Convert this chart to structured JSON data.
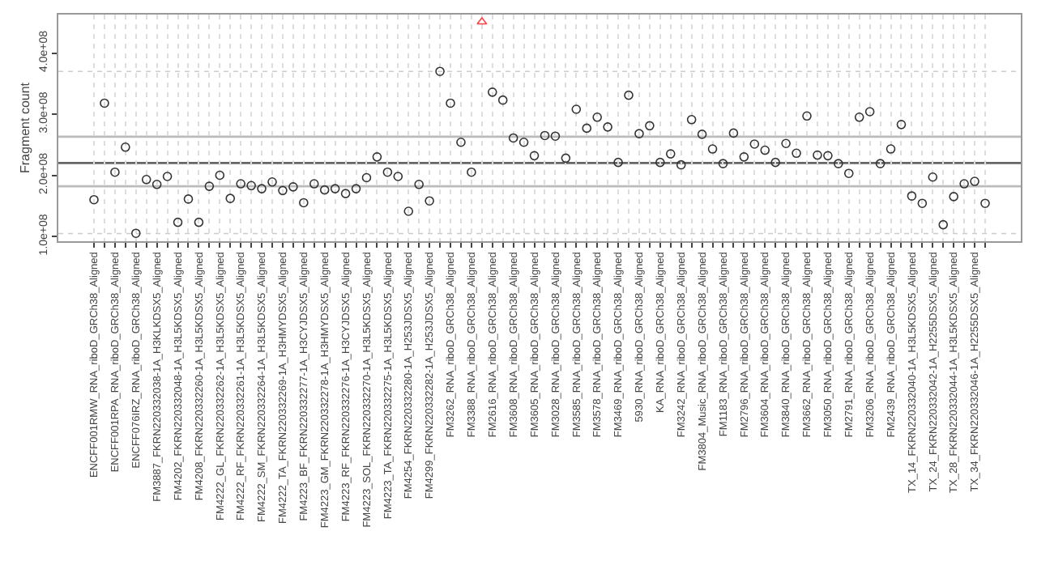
{
  "chart_data": {
    "type": "scatter",
    "ylabel": "Fragment count",
    "categories": [
      "ENCFF001RMW_RNA_riboD_GRCh38_Aligned",
      null,
      "ENCFF001RPA_RNA_riboD_GRCh38_Aligned",
      null,
      "ENCFF076IRZ_RNA_riboD_GRCh38_Aligned",
      null,
      "FM3887_FKRN220332038-1A_H3KLKDSX5_Aligned",
      null,
      "FM4202_FKRN220332048-1A_H3L5KDSX5_Aligned",
      null,
      "FM4208_FKRN220332260-1A_H3L5KDSX5_Aligned",
      null,
      "FM4222_GL_FKRN220332262-1A_H3L5KDSX5_Aligned",
      null,
      "FM4222_RF_FKRN220332261-1A_H3L5KDSX5_Aligned",
      null,
      "FM4222_SM_FKRN220332264-1A_H3L5KDSX5_Aligned",
      null,
      "FM4222_TA_FKRN220332269-1A_H3HMYDSX5_Aligned",
      null,
      "FM4223_BF_FKRN220332277-1A_H3CYJDSX5_Aligned",
      null,
      "FM4223_GM_FKRN220332278-1A_H3HMYDSX5_Aligned",
      null,
      "FM4223_RF_FKRN220332276-1A_H3CYJDSX5_Aligned",
      null,
      "FM4223_SOL_FKRN220332270-1A_H3L5KDSX5_Aligned",
      null,
      "FM4223_TA_FKRN220332275-1A_H3L5KDSX5_Aligned",
      null,
      "FM4254_FKRN220332280-1A_H253JDSX5_Aligned",
      null,
      "FM4299_FKRN220332282-1A_H253JDSX5_Aligned",
      null,
      "FM3262_RNA_riboD_GRCh38_Aligned",
      null,
      "FM3388_RNA_riboD_GRCh38_Aligned",
      null,
      "FM2616_RNA_riboD_GRCh38_Aligned",
      null,
      "FM3608_RNA_riboD_GRCh38_Aligned",
      null,
      "FM3605_RNA_riboD_GRCh38_Aligned",
      null,
      "FM3028_RNA_riboD_GRCh38_Aligned",
      null,
      "FM3585_RNA_riboD_GRCh38_Aligned",
      null,
      "FM3578_RNA_riboD_GRCh38_Aligned",
      null,
      "FM3469_RNA_riboD_GRCh38_Aligned",
      null,
      "5930_RNA_riboD_GRCh38_Aligned",
      null,
      "KA_RNA_riboD_GRCh38_Aligned",
      null,
      "FM3242_RNA_riboD_GRCh38_Aligned",
      null,
      "FM3804_Music_RNA_riboD_GRCh38_Aligned",
      null,
      "FM1183_RNA_riboD_GRCh38_Aligned",
      null,
      "FM2796_RNA_riboD_GRCh38_Aligned",
      null,
      "FM3604_RNA_riboD_GRCh38_Aligned",
      null,
      "FM3840_RNA_riboD_GRCh38_Aligned",
      null,
      "FM3662_RNA_riboD_GRCh38_Aligned",
      null,
      "FM3050_RNA_riboD_GRCh38_Aligned",
      null,
      "FM2791_RNA_riboD_GRCh38_Aligned",
      null,
      "FM3206_RNA_riboD_GRCh38_Aligned",
      null,
      "FM2439_RNA_riboD_GRCh38_Aligned",
      null,
      "TX_14_FKRN220332040-1A_H3L5KDSX5_Aligned",
      null,
      "TX_24_FKRN220332042-1A_H2255DSX5_Aligned",
      null,
      "TX_28_FKRN220332044-1A_H3L5KDSX5_Aligned",
      null,
      "TX_34_FKRN220332046-1A_H2255DSX5_Aligned",
      null
    ],
    "series": [
      {
        "color": "#333333",
        "marker": "circle",
        "values": [
          160000000.0,
          318000000.0,
          205000000.0,
          246000000.0,
          105000000.0,
          193000000.0,
          185000000.0,
          198000000.0,
          123000000.0,
          161000000.0,
          123000000.0,
          182000000.0,
          200000000.0,
          162000000.0,
          186000000.0,
          183000000.0,
          178000000.0,
          189000000.0,
          175000000.0,
          181000000.0,
          155000000.0,
          186000000.0,
          176000000.0,
          178000000.0,
          170000000.0,
          178000000.0,
          196000000.0,
          230000000.0,
          205000000.0,
          198000000.0,
          141000000.0,
          185000000.0,
          158000000.0,
          370000000.0,
          318000000.0,
          254000000.0,
          205000000.0,
          null,
          336000000.0,
          323000000.0,
          261000000.0,
          254000000.0,
          232000000.0,
          265000000.0,
          264000000.0,
          228000000.0,
          308000000.0,
          277000000.0,
          295000000.0,
          279000000.0,
          221000000.0,
          331000000.0,
          268000000.0,
          281000000.0,
          221000000.0,
          235000000.0,
          217000000.0,
          291000000.0,
          267000000.0,
          243000000.0,
          219000000.0,
          269000000.0,
          230000000.0,
          251000000.0,
          241000000.0,
          221000000.0,
          252000000.0,
          236000000.0,
          297000000.0,
          233000000.0,
          232000000.0,
          219000000.0,
          203000000.0,
          295000000.0,
          304000000.0,
          219000000.0,
          243000000.0,
          283000000.0,
          166000000.0,
          154000000.0,
          197000000.0,
          119000000.0,
          165000000.0,
          186000000.0,
          190000000.0,
          154000000.0
        ]
      },
      {
        "color": "#ff4040",
        "marker": "triangle",
        "values": [
          null,
          null,
          null,
          null,
          null,
          null,
          null,
          null,
          null,
          null,
          null,
          null,
          null,
          null,
          null,
          null,
          null,
          null,
          null,
          null,
          null,
          null,
          null,
          null,
          null,
          null,
          null,
          null,
          null,
          null,
          null,
          null,
          null,
          null,
          null,
          null,
          null,
          451000000.0,
          null,
          null,
          null,
          null,
          null,
          null,
          null,
          null,
          null,
          null,
          null,
          null,
          null,
          null,
          null,
          null,
          null,
          null,
          null,
          null,
          null,
          null,
          null,
          null,
          null,
          null,
          null,
          null,
          null,
          null,
          null,
          null,
          null,
          null,
          null,
          null,
          null,
          null,
          null,
          null,
          null,
          null,
          null,
          null,
          null,
          null,
          null,
          null
        ]
      }
    ],
    "ylim": [
      92000000.0,
      463000000.0
    ],
    "yticks": [
      {
        "value": 100000000.0,
        "label": "1.0e+08"
      },
      {
        "value": 200000000.0,
        "label": "2.0e+08"
      },
      {
        "value": 300000000.0,
        "label": "3.0e+08"
      },
      {
        "value": 400000000.0,
        "label": "4.0e+08"
      }
    ],
    "ref_lines": [
      {
        "axis": "y",
        "value": 220000000.0,
        "color": "#666666",
        "line_style": "solid"
      },
      {
        "axis": "y",
        "value": 263000000.0,
        "color": "#bbbbbb",
        "line_style": "solid"
      },
      {
        "axis": "y",
        "value": 182000000.0,
        "color": "#bbbbbb",
        "line_style": "solid"
      },
      {
        "axis": "y",
        "value": 370000000.0,
        "color": "#cccccc",
        "line_style": "dotted"
      },
      {
        "axis": "y",
        "value": 104500000.0,
        "color": "#cccccc",
        "line_style": "dotted"
      }
    ],
    "grid": "x"
  }
}
